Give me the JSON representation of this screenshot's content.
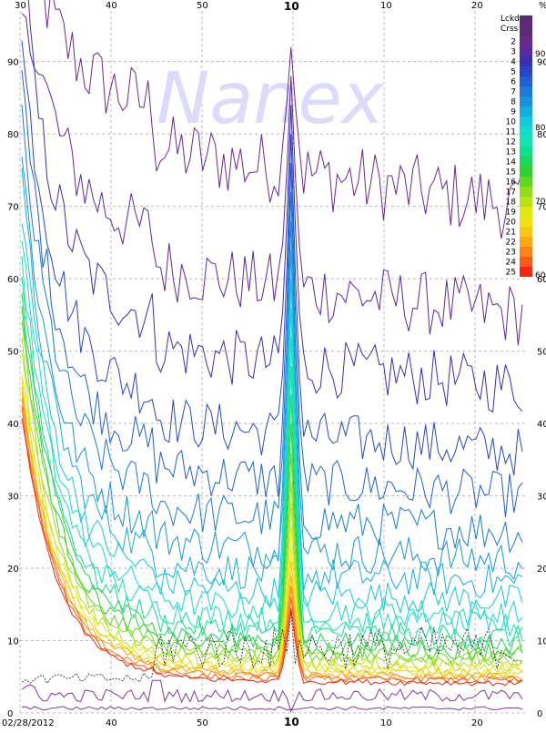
{
  "watermark": "Nanex",
  "date_label": "02/28/2012",
  "percent_label": "%",
  "colors": {
    "grid": "#bbbbbb",
    "background": "#ffffff",
    "bottom_trace": "#7a3d9a",
    "dashed_trace": "#222222"
  },
  "chart_data": {
    "type": "line",
    "title": "",
    "xlabel": "",
    "ylabel": "",
    "ylim": [
      0,
      97
    ],
    "right_ylim": [
      0,
      100
    ],
    "grid": true,
    "x_tick_labels_top": [
      "30",
      "40",
      "50",
      "10",
      "10",
      "20"
    ],
    "x_tick_labels_bottom": [
      "40",
      "50",
      "10",
      "10",
      "20"
    ],
    "x_tick_major": "10",
    "y_ticks_left": [
      0,
      10,
      20,
      30,
      40,
      50,
      60,
      70,
      80,
      90
    ],
    "y_ticks_right": [
      0,
      10,
      20,
      30,
      40,
      50,
      60,
      70,
      80,
      90
    ],
    "legend": {
      "title_lines": [
        "Lckd",
        "Crss"
      ],
      "labels": [
        "2",
        "3",
        "4",
        "5",
        "6",
        "7",
        "8",
        "9",
        "10",
        "11",
        "12",
        "13",
        "14",
        "15",
        "16",
        "17",
        "18",
        "19",
        "20",
        "21",
        "22",
        "23",
        "24",
        "25"
      ],
      "colors": [
        "#6a2a8c",
        "#5a2a9e",
        "#3b2fb0",
        "#2a46c6",
        "#2060d2",
        "#1a7ad8",
        "#1893dc",
        "#15aee0",
        "#14c8dd",
        "#12dccc",
        "#10e4b0",
        "#10e088",
        "#1ad85a",
        "#30d030",
        "#60d820",
        "#90dd18",
        "#b8e214",
        "#dce810",
        "#f0e410",
        "#f8c810",
        "#fca812",
        "#fc8414",
        "#fa5a14",
        "#f42810"
      ],
      "scale_labels": [
        "90",
        "80",
        "70",
        "60"
      ],
      "placement": "top-right"
    },
    "series": [
      {
        "name": "2",
        "start": 95,
        "end": 70,
        "spike": 92,
        "noise": 5
      },
      {
        "name": "3",
        "start": 92,
        "end": 55,
        "spike": 88,
        "noise": 4.5
      },
      {
        "name": "4",
        "start": 88,
        "end": 45,
        "spike": 84,
        "noise": 4
      },
      {
        "name": "5",
        "start": 84,
        "end": 36,
        "spike": 80,
        "noise": 3.5
      },
      {
        "name": "6",
        "start": 80,
        "end": 30,
        "spike": 76,
        "noise": 3.2
      },
      {
        "name": "7",
        "start": 76,
        "end": 25,
        "spike": 72,
        "noise": 3
      },
      {
        "name": "8",
        "start": 72,
        "end": 21,
        "spike": 68,
        "noise": 2.8
      },
      {
        "name": "9",
        "start": 69,
        "end": 18,
        "spike": 64,
        "noise": 2.5
      },
      {
        "name": "10",
        "start": 66,
        "end": 15.5,
        "spike": 60,
        "noise": 2.2
      },
      {
        "name": "11",
        "start": 63,
        "end": 13.5,
        "spike": 56,
        "noise": 2
      },
      {
        "name": "12",
        "start": 60,
        "end": 12,
        "spike": 52,
        "noise": 1.8
      },
      {
        "name": "13",
        "start": 58,
        "end": 10.5,
        "spike": 48,
        "noise": 1.6
      },
      {
        "name": "14",
        "start": 56,
        "end": 9.5,
        "spike": 44,
        "noise": 1.4
      },
      {
        "name": "15",
        "start": 54,
        "end": 8.5,
        "spike": 40,
        "noise": 1.3
      },
      {
        "name": "16",
        "start": 52,
        "end": 7.8,
        "spike": 36,
        "noise": 1.2
      },
      {
        "name": "17",
        "start": 50,
        "end": 7.2,
        "spike": 32,
        "noise": 1.1
      },
      {
        "name": "18",
        "start": 48,
        "end": 6.6,
        "spike": 29,
        "noise": 1
      },
      {
        "name": "19",
        "start": 46,
        "end": 6.1,
        "spike": 26,
        "noise": 0.9
      },
      {
        "name": "20",
        "start": 45,
        "end": 5.7,
        "spike": 23,
        "noise": 0.8
      },
      {
        "name": "21",
        "start": 44,
        "end": 5.3,
        "spike": 21,
        "noise": 0.7
      },
      {
        "name": "22",
        "start": 43,
        "end": 5.0,
        "spike": 19,
        "noise": 0.6
      },
      {
        "name": "23",
        "start": 42,
        "end": 4.7,
        "spike": 17.5,
        "noise": 0.5
      },
      {
        "name": "24",
        "start": 41,
        "end": 4.4,
        "spike": 16,
        "noise": 0.45
      },
      {
        "name": "25",
        "start": 40,
        "end": 4.1,
        "spike": 14.5,
        "noise": 0.4
      }
    ]
  }
}
